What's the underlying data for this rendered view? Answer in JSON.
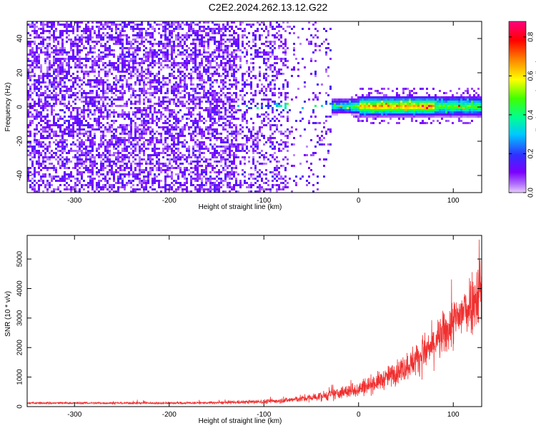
{
  "title": "C2E2.2024.262.13.12.G22",
  "chart_data": [
    {
      "type": "heatmap",
      "xlabel": "Height of straight line (km)",
      "ylabel": "Frequency (Hz)",
      "xlim": [
        -350,
        130
      ],
      "ylim": [
        -50,
        50
      ],
      "xticks": [
        -300,
        -200,
        -100,
        0,
        100
      ],
      "yticks": [
        -40,
        -20,
        0,
        20,
        40
      ],
      "xtick_labels": [
        "-300",
        "-200",
        "-100",
        "0",
        "100"
      ],
      "ytick_labels": [
        "-40",
        "-20",
        "0",
        "20",
        "40"
      ],
      "colorbar": {
        "label": "Normalized spectral amplitude",
        "range": [
          0.0,
          0.88
        ],
        "ticks": [
          0.0,
          0.2,
          0.4,
          0.6,
          0.8
        ],
        "tick_labels": [
          "0.0",
          "0.2",
          "0.4",
          "0.6",
          "0.8"
        ],
        "colormap": [
          "#e8ccff",
          "#7a00ff",
          "#3030ff",
          "#00c8ff",
          "#00ff90",
          "#40ff00",
          "#ffff00",
          "#ff8000",
          "#ff0000",
          "#ff0080"
        ]
      },
      "description_signal": {
        "noise_region_x": [
          -350,
          -30
        ],
        "signal_band_x": [
          -130,
          130
        ],
        "signal_center_hz": 1,
        "peak_x": [
          0,
          80
        ]
      },
      "grid": false
    },
    {
      "type": "line",
      "xlabel": "Height of straight line (km)",
      "ylabel": "SNR (10 * v/v)",
      "xlim": [
        -350,
        130
      ],
      "ylim": [
        0,
        5800
      ],
      "xticks": [
        -300,
        -200,
        -100,
        0,
        100
      ],
      "yticks": [
        0,
        1000,
        2000,
        3000,
        4000,
        5000
      ],
      "xtick_labels": [
        "-300",
        "-200",
        "-100",
        "0",
        "100"
      ],
      "ytick_labels": [
        "0",
        "1000",
        "2000",
        "3000",
        "4000",
        "5000"
      ],
      "color": "#f03030",
      "series": [
        {
          "x": [
            -350,
            -300,
            -250,
            -200,
            -150,
            -100,
            -75,
            -50,
            -25,
            0,
            25,
            50,
            75,
            100,
            115,
            130
          ],
          "y_center": [
            120,
            120,
            120,
            120,
            130,
            170,
            220,
            300,
            420,
            600,
            900,
            1350,
            1950,
            2800,
            3400,
            4000
          ],
          "y_spread": [
            40,
            40,
            40,
            40,
            50,
            80,
            100,
            150,
            200,
            300,
            350,
            500,
            700,
            900,
            1100,
            1300
          ]
        }
      ],
      "grid": false
    }
  ]
}
